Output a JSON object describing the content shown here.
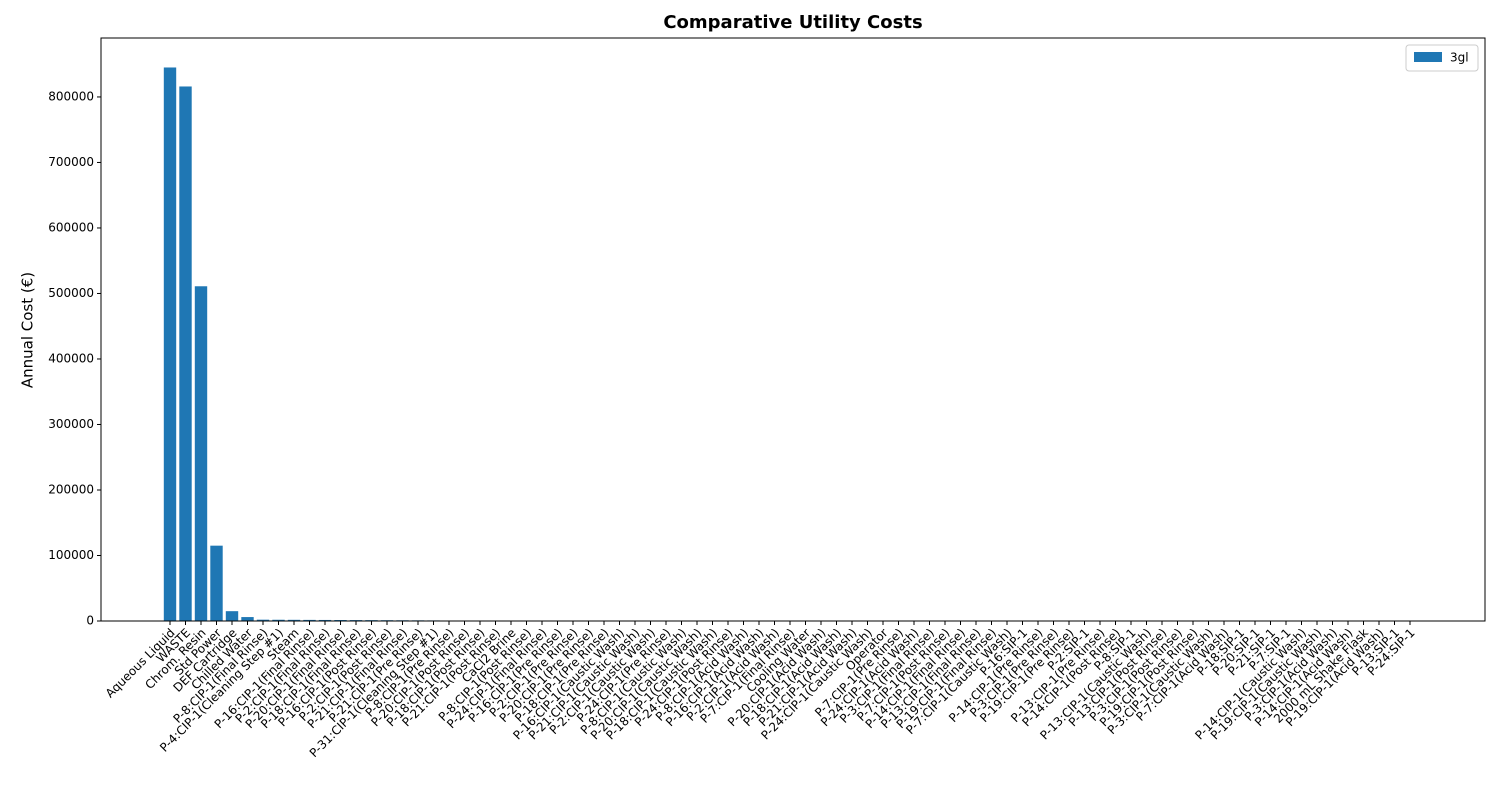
{
  "chart_data": {
    "type": "bar",
    "title": "Comparative Utility Costs",
    "y_label": "Annual Cost (€)",
    "categories": [
      "Aqueous Liquid",
      "WASTE",
      "Chrom. Resin",
      "Std Power",
      "DEF Cartridge",
      "Chilled Water",
      "P-8:CIP-1(Final Rinse)",
      "P-4:CIP-1(Cleaning Step #1)",
      "Steam",
      "P-16:CIP-1(Final Rinse)",
      "P-2:CIP-1(Final Rinse)",
      "P-20:CIP-1(Final Rinse)",
      "P-18:CIP-1(Final Rinse)",
      "P-16:CIP-1(Post Rinse)",
      "P-2:CIP-1(Post Rinse)",
      "P-21:CIP-1(Final Rinse)",
      "P-21:CIP-1(Pre Rinse)",
      "P-31:CIP-1(Cleaning Step #1)",
      "P-8:CIP-1(Pre Rinse)",
      "P-20:CIP-1(Post Rinse)",
      "P-18:CIP-1(Post Rinse)",
      "P-21:CIP-1(Post Rinse)",
      "CaCl2 Brine",
      "P-8:CIP-1(Post Rinse)",
      "P-24:CIP-1(Final Rinse)",
      "P-16:CIP-1(Pre Rinse)",
      "P-2:CIP-1(Pre Rinse)",
      "P-20:CIP-1(Pre Rinse)",
      "P-18:CIP-1(Pre Rinse)",
      "P-16:CIP-1(Caustic Wash)",
      "P-21:CIP-1(Caustic Wash)",
      "P-2:CIP-1(Caustic Wash)",
      "P-24:CIP-1(Pre Rinse)",
      "P-8:CIP-1(Caustic Wash)",
      "P-20:CIP-1(Caustic Wash)",
      "P-18:CIP-1(Caustic Wash)",
      "P-24:CIP-1(Post Rinse)",
      "P-8:CIP-1(Acid Wash)",
      "P-16:CIP-1(Acid Wash)",
      "P-2:CIP-1(Acid Wash)",
      "P-7:CIP-1(Final Rinse)",
      "Cooling Water",
      "P-20:CIP-1(Acid Wash)",
      "P-18:CIP-1(Acid Wash)",
      "P-21:CIP-1(Acid Wash)",
      "P-24:CIP-1(Caustic Wash)",
      "Operator",
      "P-7:CIP-1(Pre Rinse)",
      "P-24:CIP-1(Acid Wash)",
      "P-3:CIP-1(Final Rinse)",
      "P-7:CIP-1(Post Rinse)",
      "P-14:CIP-1(Final Rinse)",
      "P-13:CIP-1(Final Rinse)",
      "P-19:CIP-1(Final Rinse)",
      "P-7:CIP-1(Caustic Wash)",
      "P-16:SIP-1",
      "P-14:CIP-1(Pre Rinse)",
      "P-3:CIP-1(Pre Rinse)",
      "P-19:CIP-1(Pre Rinse)",
      "P-2:SIP-1",
      "P-13:CIP-1(Pre Rinse)",
      "P-14:CIP-1(Post Rinse)",
      "P-8:SIP-1",
      "P-13:CIP-1(Caustic Wash)",
      "P-13:CIP-1(Post Rinse)",
      "P-3:CIP-1(Post Rinse)",
      "P-19:CIP-1(Post Rinse)",
      "P-3:CIP-1(Caustic Wash)",
      "P-7:CIP-1(Acid Wash)",
      "P-18:SIP-1",
      "P-20:SIP-1",
      "P-21:SIP-1",
      "P-7:SIP-1",
      "P-14:CIP-1(Caustic Wash)",
      "P-19:CIP-1(Caustic Wash)",
      "P-3:CIP-1(Acid Wash)",
      "P-14:CIP-1(Acid Wash)",
      "2000 mL Shake Flask",
      "P-19:CIP-1(Acid Wash)",
      "P-13:SIP-1",
      "P-24:SIP-1"
    ],
    "series": [
      {
        "name": "3gl",
        "color": "#1f77b4",
        "values": [
          845000,
          816000,
          511000,
          115000,
          15000,
          6000,
          2000,
          1900,
          1800,
          1700,
          1600,
          1500,
          1400,
          1300,
          1200,
          1100,
          1000,
          900,
          700,
          600,
          600,
          550,
          500,
          500,
          450,
          450,
          400,
          400,
          400,
          380,
          360,
          350,
          340,
          330,
          320,
          310,
          300,
          290,
          280,
          270,
          260,
          250,
          240,
          230,
          220,
          210,
          200,
          190,
          180,
          170,
          160,
          150,
          150,
          140,
          140,
          130,
          130,
          120,
          120,
          110,
          110,
          100,
          100,
          90,
          90,
          80,
          80,
          70,
          70,
          60,
          60,
          50,
          50,
          40,
          40,
          30,
          30,
          20,
          20,
          10,
          10
        ]
      }
    ],
    "ylim": [
      0,
      890000
    ],
    "yticks": [
      0,
      100000,
      200000,
      300000,
      400000,
      500000,
      600000,
      700000,
      800000
    ],
    "legend": "upper right",
    "grid": false
  }
}
